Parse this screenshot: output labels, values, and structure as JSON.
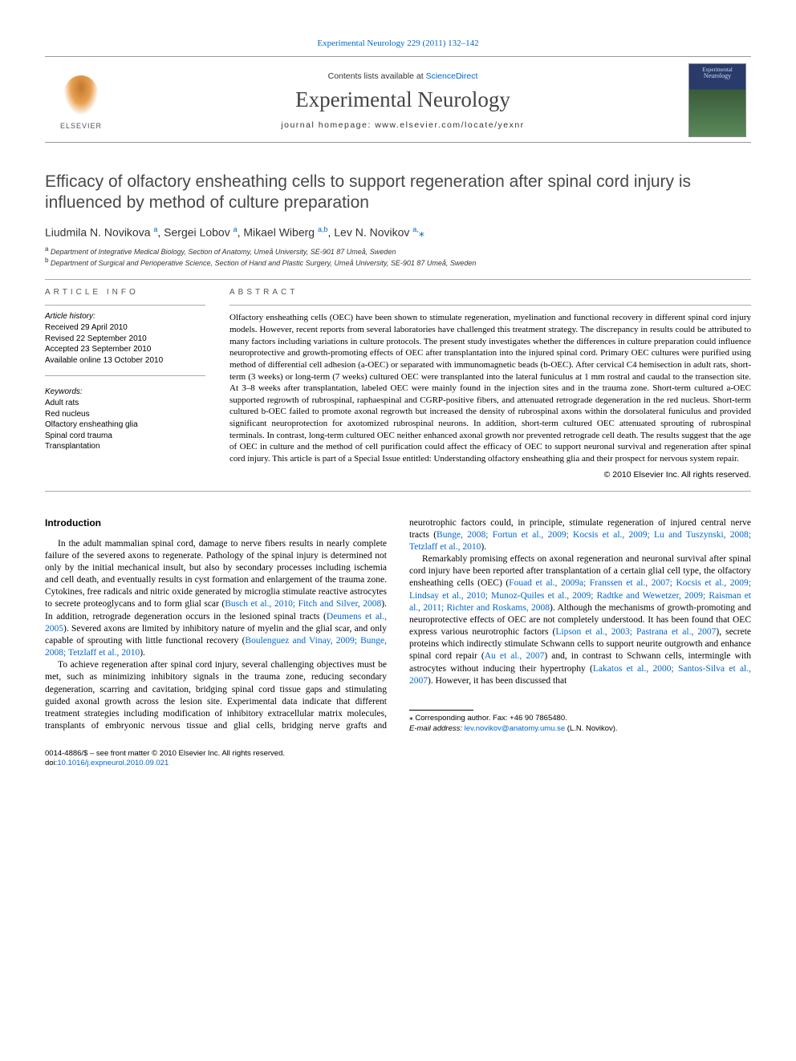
{
  "top_link_pre": "",
  "top_link": "Experimental Neurology 229 (2011) 132–142",
  "masthead": {
    "contents_pre": "Contents lists available at ",
    "contents_link": "ScienceDirect",
    "journal": "Experimental Neurology",
    "homepage_pre": "journal homepage: ",
    "homepage": "www.elsevier.com/locate/yexnr",
    "publisher": "ELSEVIER",
    "cover_line1": "Experimental",
    "cover_line2": "Neurology"
  },
  "title": "Efficacy of olfactory ensheathing cells to support regeneration after spinal cord injury is influenced by method of culture preparation",
  "authors_html": "Liudmila N. Novikova <sup>a</sup>, Sergei Lobov <sup>a</sup>, Mikael Wiberg <sup>a,b</sup>, Lev N. Novikov <sup>a,</sup><span class='star'>⁎</span>",
  "affiliations": [
    "a Department of Integrative Medical Biology, Section of Anatomy, Umeå University, SE-901 87 Umeå, Sweden",
    "b Department of Surgical and Perioperative Science, Section of Hand and Plastic Surgery, Umeå University, SE-901 87 Umeå, Sweden"
  ],
  "article_info_head": "ARTICLE INFO",
  "abstract_head": "ABSTRACT",
  "history_label": "Article history:",
  "history": [
    "Received 29 April 2010",
    "Revised 22 September 2010",
    "Accepted 23 September 2010",
    "Available online 13 October 2010"
  ],
  "keywords_label": "Keywords:",
  "keywords": [
    "Adult rats",
    "Red nucleus",
    "Olfactory ensheathing glia",
    "Spinal cord trauma",
    "Transplantation"
  ],
  "abstract": "Olfactory ensheathing cells (OEC) have been shown to stimulate regeneration, myelination and functional recovery in different spinal cord injury models. However, recent reports from several laboratories have challenged this treatment strategy. The discrepancy in results could be attributed to many factors including variations in culture protocols. The present study investigates whether the differences in culture preparation could influence neuroprotective and growth-promoting effects of OEC after transplantation into the injured spinal cord. Primary OEC cultures were purified using method of differential cell adhesion (a-OEC) or separated with immunomagnetic beads (b-OEC). After cervical C4 hemisection in adult rats, short-term (3 weeks) or long-term (7 weeks) cultured OEC were transplanted into the lateral funiculus at 1 mm rostral and caudal to the transection site. At 3–8 weeks after transplantation, labeled OEC were mainly found in the injection sites and in the trauma zone. Short-term cultured a-OEC supported regrowth of rubrospinal, raphaespinal and CGRP-positive fibers, and attenuated retrograde degeneration in the red nucleus. Short-term cultured b-OEC failed to promote axonal regrowth but increased the density of rubrospinal axons within the dorsolateral funiculus and provided significant neuroprotection for axotomized rubrospinal neurons. In addition, short-term cultured OEC attenuated sprouting of rubrospinal terminals. In contrast, long-term cultured OEC neither enhanced axonal growth nor prevented retrograde cell death. The results suggest that the age of OEC in culture and the method of cell purification could affect the efficacy of OEC to support neuronal survival and regeneration after spinal cord injury. This article is part of a Special Issue entitled: Understanding olfactory ensheathing glia and their prospect for nervous system repair.",
  "copyright": "© 2010 Elsevier Inc. All rights reserved.",
  "section_head": "Introduction",
  "paragraphs": [
    "In the adult mammalian spinal cord, damage to nerve fibers results in nearly complete failure of the severed axons to regenerate. Pathology of the spinal injury is determined not only by the initial mechanical insult, but also by secondary processes including ischemia and cell death, and eventually results in cyst formation and enlargement of the trauma zone. Cytokines, free radicals and nitric oxide generated by microglia stimulate reactive astrocytes to secrete proteoglycans and to form glial scar (<span class='ref'>Busch et al., 2010; Fitch and Silver, 2008</span>). In addition, retrograde degeneration occurs in the lesioned spinal tracts (<span class='ref'>Deumens et al., 2005</span>). Severed axons are limited by inhibitory nature of myelin and the glial scar, and only capable of sprouting with little functional recovery (<span class='ref'>Boulenguez and Vinay, 2009; Bunge, 2008; Tetzlaff et al., 2010</span>).",
    "To achieve regeneration after spinal cord injury, several challenging objectives must be met, such as minimizing inhibitory signals in the trauma zone, reducing secondary degeneration, scarring and cavitation, bridging spinal cord tissue gaps and stimulating guided axonal growth across the lesion site. Experimental data indicate that different treatment strategies including modification of inhibitory extracellular matrix molecules, transplants of embryonic nervous tissue and glial cells, bridging nerve grafts and neurotrophic factors could, in principle, stimulate regeneration of injured central nerve tracts (<span class='ref'>Bunge, 2008; Fortun et al., 2009; Kocsis et al., 2009; Lu and Tuszynski, 2008; Tetzlaff et al., 2010</span>).",
    "Remarkably promising effects on axonal regeneration and neuronal survival after spinal cord injury have been reported after transplantation of a certain glial cell type, the olfactory ensheathing cells (OEC) (<span class='ref'>Fouad et al., 2009a; Franssen et al., 2007; Kocsis et al., 2009; Lindsay et al., 2010; Munoz-Quiles et al., 2009; Radtke and Wewetzer, 2009; Raisman et al., 2011; Richter and Roskams, 2008</span>). Although the mechanisms of growth-promoting and neuroprotective effects of OEC are not completely understood. It has been found that OEC express various neurotrophic factors (<span class='ref'>Lipson et al., 2003; Pastrana et al., 2007</span>), secrete proteins which indirectly stimulate Schwann cells to support neurite outgrowth and enhance spinal cord repair (<span class='ref'>Au et al., 2007</span>) and, in contrast to Schwann cells, intermingle with astrocytes without inducing their hypertrophy (<span class='ref'>Lakatos et al., 2000; Santos-Silva et al., 2007</span>). However, it has been discussed that"
  ],
  "footnotes": {
    "corr": "⁎ Corresponding author. Fax: +46 90 7865480.",
    "email_label": "E-mail address: ",
    "email": "lev.novikov@anatomy.umu.se",
    "email_tail": " (L.N. Novikov)."
  },
  "footer": {
    "line1": "0014-4886/$ – see front matter © 2010 Elsevier Inc. All rights reserved.",
    "doi_pre": "doi:",
    "doi": "10.1016/j.expneurol.2010.09.021"
  },
  "colors": {
    "link": "#0066cc",
    "text": "#000000",
    "heading": "#494949",
    "rule": "#aaaaaa"
  }
}
